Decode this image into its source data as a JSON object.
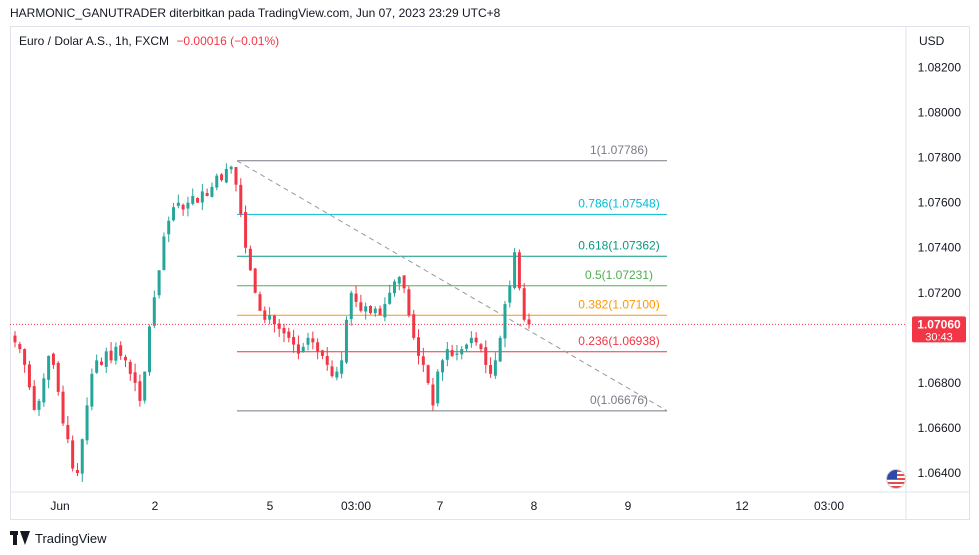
{
  "header": {
    "publish_line": "HARMONIC_GANUTRADER diterbitkan pada TradingView.com, Jun 07, 2023 23:29 UTC+8"
  },
  "legend": {
    "symbol": "Euro / Dolar A.S., 1h, FXCM",
    "change": "−0.00016 (−0.01%)"
  },
  "price_axis": {
    "currency": "USD"
  },
  "last_price": {
    "value": "1.07060",
    "countdown": "30:43"
  },
  "footer": {
    "brand": "TradingView"
  },
  "colors": {
    "up": "#26a69a",
    "down": "#f23645",
    "axis_text": "#131722"
  },
  "chart_data": {
    "type": "candlestick",
    "title": "",
    "xlabel": "",
    "ylabel": "",
    "ylim": [
      1.0632,
      1.0838
    ],
    "y_ticks": [
      1.064,
      1.066,
      1.068,
      1.07,
      1.072,
      1.074,
      1.076,
      1.078,
      1.08,
      1.082
    ],
    "x_ticks": [
      "Jun",
      "2",
      "5",
      "03:00",
      "7",
      "8",
      "9",
      "12",
      "03:00"
    ],
    "last_price": 1.0706,
    "fibonacci": [
      {
        "ratio": "1",
        "price": 1.07786,
        "label": "1(1.07786)",
        "color": "#787b86"
      },
      {
        "ratio": "0.786",
        "price": 1.07548,
        "label": "0.786(1.07548)",
        "color": "#00bcd4"
      },
      {
        "ratio": "0.618",
        "price": 1.07362,
        "label": "0.618(1.07362)",
        "color": "#089981"
      },
      {
        "ratio": "0.5",
        "price": 1.07231,
        "label": "0.5(1.07231)",
        "color": "#4caf50"
      },
      {
        "ratio": "0.382",
        "price": 1.071,
        "label": "0.382(1.07100)",
        "color": "#ff9800"
      },
      {
        "ratio": "0.236",
        "price": 1.06938,
        "label": "0.236(1.06938)",
        "color": "#f23645"
      },
      {
        "ratio": "0",
        "price": 1.06676,
        "label": "0(1.06676)",
        "color": "#787b86"
      }
    ],
    "trend_line": {
      "from": 1.07786,
      "to": 1.06676
    },
    "path": [
      1.0698,
      1.0695,
      1.0688,
      1.0678,
      1.0668,
      1.0672,
      1.0682,
      1.0692,
      1.0688,
      1.0676,
      1.0662,
      1.0655,
      1.0642,
      1.064,
      1.0655,
      1.067,
      1.0684,
      1.069,
      1.0688,
      1.0694,
      1.069,
      1.0696,
      1.0692,
      1.069,
      1.0684,
      1.068,
      1.0672,
      1.0685,
      1.0705,
      1.0718,
      1.073,
      1.0745,
      1.0752,
      1.0758,
      1.076,
      1.0757,
      1.076,
      1.0763,
      1.076,
      1.0765,
      1.0763,
      1.0767,
      1.0772,
      1.077,
      1.0775,
      1.0776,
      1.0768,
      1.0755,
      1.074,
      1.073,
      1.072,
      1.0712,
      1.0708,
      1.071,
      1.0706,
      1.0704,
      1.0702,
      1.07,
      1.0697,
      1.0693,
      1.0696,
      1.07,
      1.0698,
      1.0694,
      1.0692,
      1.0688,
      1.0683,
      1.0685,
      1.069,
      1.0708,
      1.072,
      1.0716,
      1.0712,
      1.0714,
      1.0711,
      1.0713,
      1.071,
      1.0715,
      1.072,
      1.0725,
      1.0727,
      1.0722,
      1.071,
      1.07,
      1.0692,
      1.0688,
      1.068,
      1.067,
      1.0685,
      1.069,
      1.0695,
      1.0692,
      1.0693,
      1.0695,
      1.0697,
      1.07,
      1.0698,
      1.0695,
      1.0688,
      1.0684,
      1.069,
      1.07,
      1.0715,
      1.0723,
      1.0738,
      1.0722,
      1.0708,
      1.0706
    ]
  }
}
